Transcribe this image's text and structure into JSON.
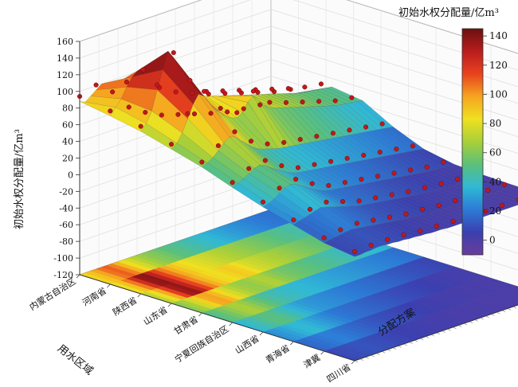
{
  "chart_data": {
    "type": "surface3d",
    "colorbar_title": "初始水权分配量/亿m³",
    "zlabel": "初始水权分配量/亿m³",
    "xlabel": "用水区域",
    "ylabel": "分配方案",
    "zlim": [
      -120,
      160
    ],
    "z_ticks": [
      "160",
      "140",
      "120",
      "100",
      "80",
      "60",
      "40",
      "20",
      "0",
      "-20",
      "-40",
      "-60",
      "-80",
      "-100",
      "-120"
    ],
    "colorbar_range": [
      -10,
      145
    ],
    "colorbar_ticks": [
      "140",
      "120",
      "100",
      "80",
      "60",
      "40",
      "20",
      "0"
    ],
    "colors": [
      "#6a3d9a",
      "#3b3fb0",
      "#2c7bd6",
      "#30b8d6",
      "#5cc07a",
      "#a8cf3a",
      "#f0e020",
      "#f5a420",
      "#e8421e",
      "#b81d1d",
      "#6b1010"
    ],
    "regions": [
      "内蒙古自治区",
      "河南省",
      "陕西省",
      "山东省",
      "甘肃省",
      "宁夏回族自治区",
      "山西省",
      "青海省",
      "津冀",
      "四川省"
    ],
    "schemes_count": 36,
    "surface_profile": [
      [
        88,
        85,
        90,
        95,
        100,
        92,
        80,
        70,
        62,
        55,
        50,
        45,
        42,
        40,
        36,
        32,
        30,
        28,
        26,
        24,
        22,
        20,
        18,
        16,
        14,
        12,
        10,
        9,
        8,
        7,
        6,
        5,
        5,
        4,
        4,
        3
      ],
      [
        82,
        90,
        98,
        110,
        120,
        125,
        118,
        105,
        98,
        90,
        85,
        80,
        78,
        75,
        72,
        70,
        68,
        65,
        62,
        60,
        58,
        56,
        54,
        52,
        50,
        48,
        46,
        44,
        42,
        40,
        38,
        36,
        35,
        34,
        33,
        32
      ],
      [
        75,
        82,
        95,
        118,
        140,
        160,
        150,
        135,
        120,
        110,
        100,
        95,
        90,
        88,
        86,
        84,
        82,
        80,
        78,
        76,
        74,
        72,
        70,
        68,
        66,
        64,
        62,
        60,
        58,
        56,
        55,
        54,
        53,
        52,
        51,
        50
      ],
      [
        65,
        70,
        80,
        95,
        110,
        120,
        115,
        105,
        95,
        88,
        82,
        78,
        76,
        80,
        90,
        95,
        88,
        80,
        75,
        72,
        70,
        68,
        66,
        64,
        62,
        60,
        58,
        56,
        54,
        52,
        50,
        49,
        48,
        47,
        46,
        45
      ],
      [
        55,
        58,
        62,
        68,
        75,
        80,
        78,
        72,
        66,
        60,
        55,
        52,
        50,
        48,
        46,
        45,
        44,
        43,
        42,
        41,
        40,
        39,
        38,
        37,
        36,
        35,
        34,
        33,
        32,
        31,
        30,
        29,
        28,
        27,
        26,
        25
      ],
      [
        42,
        45,
        48,
        52,
        56,
        58,
        55,
        50,
        46,
        42,
        38,
        35,
        33,
        32,
        31,
        30,
        29,
        28,
        27,
        26,
        25,
        24,
        23,
        22,
        21,
        20,
        19,
        18,
        17,
        16,
        15,
        14,
        13,
        12,
        11,
        10
      ],
      [
        30,
        32,
        35,
        40,
        44,
        46,
        44,
        40,
        36,
        32,
        28,
        25,
        23,
        22,
        21,
        20,
        19,
        18,
        17,
        16,
        15,
        14,
        13,
        12,
        11,
        10,
        9,
        8,
        7,
        6,
        5,
        5,
        4,
        4,
        3,
        3
      ],
      [
        20,
        22,
        24,
        26,
        28,
        30,
        28,
        26,
        24,
        22,
        20,
        18,
        16,
        15,
        14,
        13,
        12,
        11,
        10,
        9,
        8,
        7,
        6,
        5,
        5,
        4,
        4,
        3,
        3,
        2,
        2,
        2,
        1,
        1,
        1,
        1
      ],
      [
        10,
        11,
        12,
        13,
        14,
        15,
        14,
        13,
        12,
        11,
        10,
        9,
        8,
        7,
        6,
        5,
        5,
        4,
        4,
        3,
        3,
        2,
        2,
        2,
        1,
        1,
        1,
        1,
        0,
        0,
        0,
        0,
        0,
        0,
        0,
        0
      ],
      [
        5,
        5,
        6,
        6,
        7,
        7,
        6,
        6,
        5,
        5,
        4,
        4,
        3,
        3,
        2,
        2,
        2,
        1,
        1,
        1,
        1,
        0,
        0,
        0,
        0,
        0,
        0,
        0,
        0,
        0,
        0,
        0,
        0,
        0,
        0,
        0
      ]
    ]
  }
}
